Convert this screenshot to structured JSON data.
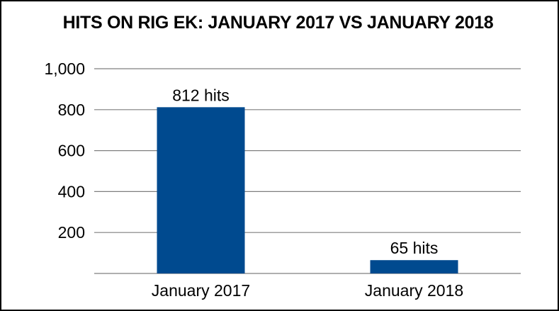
{
  "chart_data": {
    "type": "bar",
    "title": "HITS ON RIG EK: JANUARY 2017 VS JANUARY 2018",
    "categories": [
      "January 2017",
      "January 2018"
    ],
    "values": [
      812,
      65
    ],
    "data_labels": [
      "812 hits",
      "65 hits"
    ],
    "yticks": [
      "200",
      "400",
      "600",
      "800",
      "1,000"
    ],
    "ytick_values": [
      200,
      400,
      600,
      800,
      1000
    ],
    "ylim": [
      0,
      1000
    ],
    "grid": true,
    "legend": "none",
    "bar_color": "#004a8f",
    "grid_color": "#7f7f7f"
  }
}
